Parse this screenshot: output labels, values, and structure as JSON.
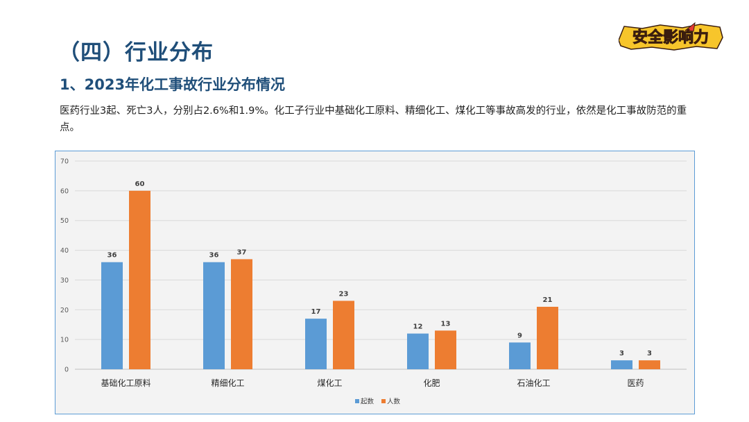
{
  "header": {
    "section_title": "（四）行业分布",
    "sub_title": "1、2023年化工事故行业分布情况",
    "description": "医药行业3起、死亡3人，分别占2.6%和1.9%。化工子行业中基础化工原料、精细化工、煤化工等事故高发的行业，依然是化工事故防范的重点。"
  },
  "logo": {
    "text": "安全影响力"
  },
  "colors": {
    "title": "#1f4e79",
    "series1": "#5b9bd5",
    "series2": "#ed7d31",
    "grid": "#d9d9d9",
    "frame": "#5b9bd5"
  },
  "chart_data": {
    "type": "bar",
    "categories": [
      "基础化工原料",
      "精细化工",
      "煤化工",
      "化肥",
      "石油化工",
      "医药"
    ],
    "series": [
      {
        "name": "起数",
        "values": [
          36,
          36,
          17,
          12,
          9,
          3
        ]
      },
      {
        "name": "人数",
        "values": [
          60,
          37,
          23,
          13,
          21,
          3
        ]
      }
    ],
    "ylim": [
      0,
      70
    ],
    "yticks": [
      0,
      10,
      20,
      30,
      40,
      50,
      60,
      70
    ],
    "grid": true,
    "legend_position": "bottom"
  }
}
